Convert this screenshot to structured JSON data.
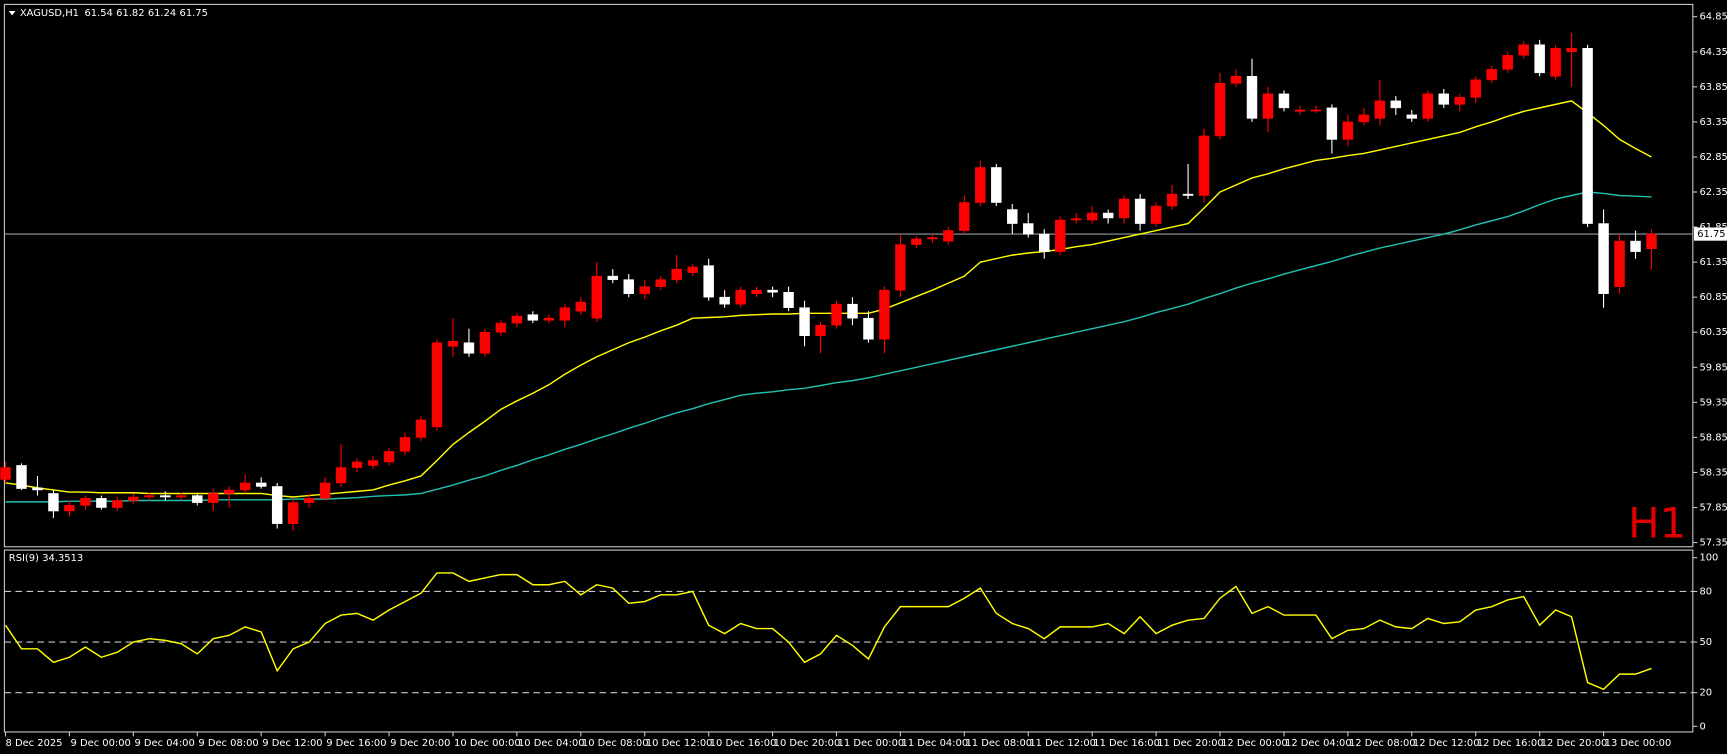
{
  "chart_data": [
    {
      "type": "candlestick",
      "title": "XAGUSD,H1",
      "watermark": "H1",
      "up_color": "#ff0000",
      "down_color": "#ffffff",
      "last_line_color": "#8c9aa6",
      "categories": [
        "8 Dec 2025",
        null,
        null,
        null,
        "9 Dec 00:00",
        null,
        null,
        null,
        "9 Dec 04:00",
        null,
        null,
        null,
        "9 Dec 08:00",
        null,
        null,
        null,
        "9 Dec 12:00",
        null,
        null,
        null,
        "9 Dec 16:00",
        null,
        null,
        null,
        "9 Dec 20:00",
        null,
        null,
        null,
        "10 Dec 00:00",
        null,
        null,
        null,
        "10 Dec 04:00",
        null,
        null,
        null,
        "10 Dec 08:00",
        null,
        null,
        null,
        "10 Dec 12:00",
        null,
        null,
        null,
        "10 Dec 16:00",
        null,
        null,
        null,
        "10 Dec 20:00",
        null,
        null,
        null,
        "11 Dec 00:00",
        null,
        null,
        null,
        "11 Dec 04:00",
        null,
        null,
        null,
        "11 Dec 08:00",
        null,
        null,
        null,
        "11 Dec 12:00",
        null,
        null,
        null,
        "11 Dec 16:00",
        null,
        null,
        null,
        "11 Dec 20:00",
        null,
        null,
        null,
        "12 Dec 00:00",
        null,
        null,
        null,
        "12 Dec 04:00",
        null,
        null,
        null,
        "12 Dec 08:00",
        null,
        null,
        null,
        "12 Dec 12:00",
        null,
        null,
        null,
        "12 Dec 16:00",
        null,
        null,
        null,
        "12 Dec 20:00",
        null,
        null,
        null,
        "13 Dec 00:00",
        null,
        null,
        null
      ],
      "open": [
        58.25,
        58.45,
        58.13,
        58.05,
        57.8,
        57.88,
        57.98,
        57.85,
        57.95,
        58.0,
        58.02,
        58.0,
        58.02,
        57.92,
        58.05,
        58.1,
        58.2,
        58.15,
        57.62,
        57.92,
        57.98,
        58.2,
        58.42,
        58.45,
        58.5,
        58.65,
        58.85,
        59.0,
        60.15,
        60.2,
        60.05,
        60.35,
        60.48,
        60.6,
        60.52,
        60.52,
        60.65,
        60.55,
        61.15,
        61.1,
        60.9,
        61.0,
        61.1,
        61.2,
        61.3,
        60.85,
        60.75,
        60.9,
        60.95,
        60.92,
        60.7,
        60.3,
        60.45,
        60.75,
        60.55,
        60.25,
        60.95,
        61.6,
        61.68,
        61.65,
        61.8,
        62.2,
        62.7,
        62.1,
        61.9,
        61.75,
        61.5,
        61.95,
        61.95,
        62.05,
        61.98,
        62.25,
        61.9,
        62.15,
        62.32,
        62.3,
        63.15,
        63.9,
        64.0,
        63.4,
        63.75,
        63.5,
        63.52,
        63.55,
        63.1,
        63.35,
        63.4,
        63.65,
        63.45,
        63.4,
        63.75,
        63.6,
        63.7,
        63.95,
        64.1,
        64.3,
        64.45,
        64.0,
        64.35,
        64.4,
        61.9,
        61.0,
        61.65,
        61.54
      ],
      "high": [
        58.5,
        58.48,
        58.3,
        58.1,
        57.95,
        58.02,
        58.02,
        58.0,
        58.05,
        58.06,
        58.08,
        58.06,
        58.05,
        58.12,
        58.15,
        58.32,
        58.28,
        58.2,
        57.98,
        58.05,
        58.28,
        58.75,
        58.55,
        58.58,
        58.7,
        58.92,
        59.15,
        60.25,
        60.55,
        60.4,
        60.4,
        60.52,
        60.62,
        60.65,
        60.6,
        60.75,
        60.85,
        61.35,
        61.25,
        61.18,
        61.1,
        61.15,
        61.45,
        61.32,
        61.4,
        60.95,
        61.0,
        61.0,
        61.0,
        61.0,
        60.8,
        60.5,
        60.8,
        60.85,
        60.65,
        61.0,
        61.75,
        61.72,
        61.75,
        61.85,
        62.3,
        62.8,
        62.75,
        62.18,
        62.05,
        61.82,
        62.0,
        62.05,
        62.15,
        62.1,
        62.3,
        62.32,
        62.2,
        62.45,
        62.75,
        63.25,
        64.05,
        64.1,
        64.25,
        63.85,
        63.8,
        63.58,
        63.58,
        63.6,
        63.45,
        63.55,
        63.95,
        63.72,
        63.52,
        63.8,
        63.82,
        63.75,
        64.0,
        64.15,
        64.35,
        64.5,
        64.52,
        64.45,
        64.62,
        64.45,
        62.1,
        61.75,
        61.8,
        61.82
      ],
      "low": [
        58.2,
        58.1,
        58.02,
        57.7,
        57.72,
        57.82,
        57.82,
        57.8,
        57.9,
        57.95,
        57.95,
        57.96,
        57.88,
        57.8,
        57.85,
        58.05,
        58.12,
        57.55,
        57.52,
        57.85,
        57.95,
        58.15,
        58.35,
        58.4,
        58.45,
        58.6,
        58.8,
        58.95,
        60.0,
        60.0,
        60.0,
        60.3,
        60.42,
        60.48,
        60.48,
        60.42,
        60.6,
        60.5,
        61.05,
        60.85,
        60.82,
        60.95,
        61.05,
        61.15,
        60.8,
        60.7,
        60.7,
        60.85,
        60.85,
        60.65,
        60.15,
        60.05,
        60.4,
        60.45,
        60.2,
        60.05,
        60.85,
        61.55,
        61.62,
        61.6,
        61.75,
        62.15,
        62.15,
        61.75,
        61.7,
        61.4,
        61.45,
        61.9,
        61.9,
        61.9,
        61.9,
        61.8,
        61.85,
        62.1,
        62.25,
        62.2,
        63.1,
        63.85,
        63.35,
        63.2,
        63.5,
        63.45,
        63.48,
        62.9,
        63.0,
        63.3,
        63.3,
        63.45,
        63.35,
        63.35,
        63.55,
        63.5,
        63.62,
        63.9,
        64.05,
        64.25,
        64.0,
        63.95,
        63.85,
        61.85,
        60.7,
        60.9,
        61.4,
        61.24
      ],
      "close": [
        58.42,
        58.12,
        58.1,
        57.8,
        57.88,
        57.98,
        57.85,
        57.95,
        58.0,
        58.02,
        58.0,
        58.02,
        57.92,
        58.05,
        58.1,
        58.2,
        58.15,
        57.62,
        57.92,
        57.98,
        58.2,
        58.42,
        58.5,
        58.52,
        58.65,
        58.85,
        59.1,
        60.2,
        60.22,
        60.05,
        60.35,
        60.48,
        60.58,
        60.52,
        60.55,
        60.7,
        60.78,
        61.15,
        61.1,
        60.9,
        61.0,
        61.1,
        61.25,
        61.28,
        60.85,
        60.75,
        60.95,
        60.95,
        60.92,
        60.7,
        60.3,
        60.45,
        60.75,
        60.55,
        60.25,
        60.95,
        61.6,
        61.68,
        61.7,
        61.8,
        62.2,
        62.7,
        62.2,
        61.9,
        61.75,
        61.5,
        61.95,
        61.97,
        62.05,
        61.98,
        62.25,
        61.9,
        62.15,
        62.32,
        62.3,
        63.15,
        63.9,
        64.0,
        63.4,
        63.75,
        63.55,
        63.52,
        63.52,
        63.1,
        63.35,
        63.45,
        63.65,
        63.55,
        63.4,
        63.75,
        63.6,
        63.7,
        63.95,
        64.1,
        64.3,
        64.45,
        64.05,
        64.4,
        64.4,
        61.9,
        60.9,
        61.65,
        61.5,
        61.75
      ],
      "overlays": [
        {
          "color": "#ffff00",
          "values": [
            58.2,
            58.17,
            58.13,
            58.1,
            58.07,
            58.07,
            58.06,
            58.06,
            58.06,
            58.05,
            58.05,
            58.05,
            58.05,
            58.05,
            58.05,
            58.05,
            58.05,
            58.02,
            58.0,
            58.02,
            58.04,
            58.06,
            58.08,
            58.1,
            58.17,
            58.23,
            58.3,
            58.52,
            58.75,
            58.92,
            59.08,
            59.25,
            59.37,
            59.48,
            59.6,
            59.75,
            59.88,
            60.0,
            60.1,
            60.2,
            60.28,
            60.37,
            60.45,
            60.55,
            60.56,
            60.57,
            60.59,
            60.6,
            60.61,
            60.61,
            60.62,
            60.62,
            60.62,
            60.62,
            60.62,
            60.68,
            60.77,
            60.86,
            60.95,
            61.05,
            61.15,
            61.35,
            61.4,
            61.45,
            61.48,
            61.5,
            61.53,
            61.57,
            61.6,
            61.65,
            61.7,
            61.75,
            61.8,
            61.85,
            61.9,
            62.12,
            62.35,
            62.45,
            62.55,
            62.61,
            62.68,
            62.74,
            62.8,
            62.83,
            62.87,
            62.9,
            62.95,
            63.0,
            63.05,
            63.1,
            63.15,
            63.2,
            63.28,
            63.35,
            63.43,
            63.5,
            63.55,
            63.6,
            63.65,
            63.48,
            63.3,
            63.1,
            62.97,
            62.85
          ]
        },
        {
          "color": "#20c0b0",
          "values": [
            57.93,
            57.93,
            57.93,
            57.93,
            57.94,
            57.94,
            57.94,
            57.94,
            57.95,
            57.95,
            57.95,
            57.95,
            57.95,
            57.96,
            57.96,
            57.96,
            57.96,
            57.96,
            57.97,
            57.97,
            57.97,
            57.98,
            57.99,
            58.01,
            58.02,
            58.03,
            58.05,
            58.11,
            58.17,
            58.24,
            58.3,
            58.38,
            58.45,
            58.53,
            58.6,
            58.68,
            58.75,
            58.83,
            58.9,
            58.98,
            59.05,
            59.13,
            59.2,
            59.26,
            59.33,
            59.39,
            59.45,
            59.48,
            59.5,
            59.53,
            59.55,
            59.59,
            59.63,
            59.66,
            59.7,
            59.75,
            59.8,
            59.85,
            59.9,
            59.95,
            60.0,
            60.05,
            60.1,
            60.15,
            60.2,
            60.25,
            60.3,
            60.35,
            60.4,
            60.45,
            60.5,
            60.56,
            60.63,
            60.69,
            60.75,
            60.83,
            60.9,
            60.98,
            61.05,
            61.11,
            61.18,
            61.24,
            61.3,
            61.36,
            61.43,
            61.49,
            61.55,
            61.6,
            61.65,
            61.7,
            61.75,
            61.81,
            61.88,
            61.94,
            62.0,
            62.08,
            62.17,
            62.25,
            62.3,
            62.35,
            62.33,
            62.3,
            62.29,
            62.28
          ]
        }
      ],
      "ylim": [
        57.29,
        65.01
      ],
      "yticks": [
        57.35,
        57.85,
        58.35,
        58.85,
        59.35,
        59.85,
        60.35,
        60.85,
        61.35,
        61.85,
        62.35,
        62.85,
        63.35,
        63.85,
        64.35,
        64.85
      ]
    },
    {
      "type": "line",
      "title": "RSI(9)",
      "color": "#ffff00",
      "values": [
        60,
        46,
        46,
        38,
        41,
        47,
        41,
        44,
        50,
        52,
        51,
        49,
        43,
        52,
        54,
        59,
        56,
        33,
        46,
        50,
        61,
        66,
        67,
        63,
        69,
        74,
        79,
        91,
        91,
        86,
        88,
        90,
        90,
        84,
        84,
        86,
        78,
        84,
        82,
        73,
        74,
        78,
        78,
        80,
        60,
        55,
        61,
        58,
        58,
        50,
        38,
        43,
        54,
        48,
        40,
        59,
        71,
        71,
        71,
        71,
        76,
        82,
        67,
        61,
        58,
        52,
        59,
        59,
        59,
        61,
        55,
        65,
        55,
        60,
        63,
        64,
        76,
        83,
        67,
        71,
        66,
        66,
        66,
        52,
        57,
        58,
        63,
        59,
        58,
        64,
        61,
        62,
        69,
        71,
        75,
        77,
        60,
        69,
        65,
        26,
        22,
        31,
        31,
        34.3513
      ],
      "ylim": [
        -3.3,
        103.9
      ],
      "yticks": [
        0,
        20,
        50,
        80,
        100
      ],
      "levels": [
        20,
        50,
        80
      ]
    }
  ]
}
